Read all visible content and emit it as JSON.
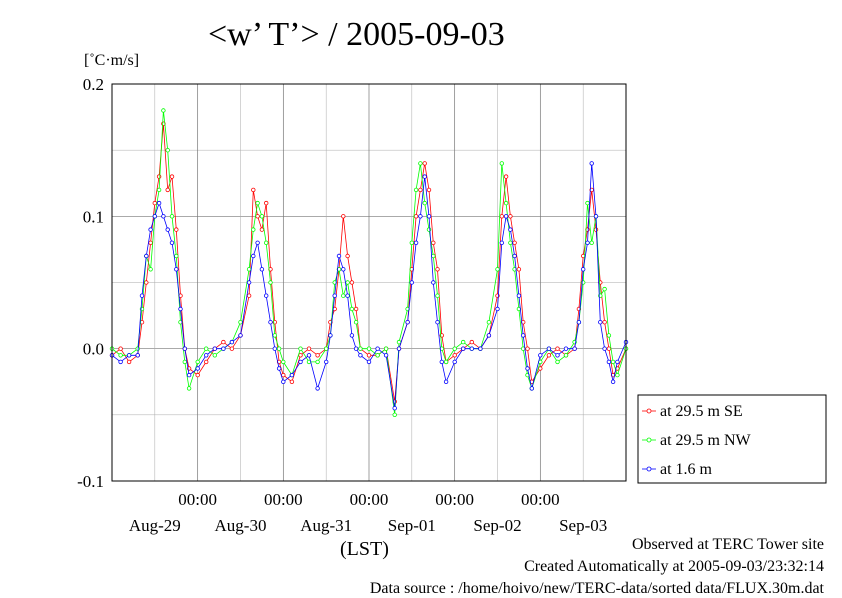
{
  "chart_data": {
    "type": "line",
    "title": "<w’ T’> / 2005-09-03",
    "ylabel": "[˚C·m/s]",
    "xlabel": "(LST)",
    "ylim": [
      -0.1,
      0.2
    ],
    "yticks": [
      "-0.1",
      "0.0",
      "0.1",
      "0.2"
    ],
    "xlim": [
      0,
      6
    ],
    "time_ticks": [
      "00:00",
      "00:00",
      "00:00",
      "00:00",
      "00:00"
    ],
    "date_labels": [
      "Aug-29",
      "Aug-30",
      "Aug-31",
      "Sep-01",
      "Sep-02",
      "Sep-03"
    ],
    "grid": true,
    "legend_position": "right",
    "series": [
      {
        "name": "at 29.5 m SE",
        "color": "#ff0000",
        "points": [
          [
            0.0,
            -0.005
          ],
          [
            0.1,
            0.0
          ],
          [
            0.2,
            -0.01
          ],
          [
            0.3,
            -0.005
          ],
          [
            0.35,
            0.02
          ],
          [
            0.4,
            0.05
          ],
          [
            0.45,
            0.08
          ],
          [
            0.5,
            0.11
          ],
          [
            0.55,
            0.13
          ],
          [
            0.6,
            0.17
          ],
          [
            0.65,
            0.12
          ],
          [
            0.7,
            0.13
          ],
          [
            0.75,
            0.09
          ],
          [
            0.8,
            0.04
          ],
          [
            0.85,
            0.0
          ],
          [
            0.9,
            -0.015
          ],
          [
            1.0,
            -0.02
          ],
          [
            1.1,
            -0.01
          ],
          [
            1.2,
            0.0
          ],
          [
            1.3,
            0.005
          ],
          [
            1.4,
            0.0
          ],
          [
            1.5,
            0.01
          ],
          [
            1.6,
            0.04
          ],
          [
            1.65,
            0.12
          ],
          [
            1.7,
            0.1
          ],
          [
            1.75,
            0.09
          ],
          [
            1.8,
            0.11
          ],
          [
            1.85,
            0.06
          ],
          [
            1.9,
            0.02
          ],
          [
            1.95,
            -0.01
          ],
          [
            2.0,
            -0.02
          ],
          [
            2.1,
            -0.025
          ],
          [
            2.2,
            -0.005
          ],
          [
            2.3,
            0.0
          ],
          [
            2.4,
            -0.005
          ],
          [
            2.5,
            0.0
          ],
          [
            2.55,
            0.02
          ],
          [
            2.6,
            0.03
          ],
          [
            2.65,
            0.06
          ],
          [
            2.7,
            0.1
          ],
          [
            2.75,
            0.07
          ],
          [
            2.8,
            0.05
          ],
          [
            2.85,
            0.03
          ],
          [
            2.9,
            0.0
          ],
          [
            3.0,
            -0.005
          ],
          [
            3.1,
            -0.005
          ],
          [
            3.2,
            0.0
          ],
          [
            3.3,
            -0.04
          ],
          [
            3.35,
            0.0
          ],
          [
            3.45,
            0.02
          ],
          [
            3.5,
            0.06
          ],
          [
            3.55,
            0.1
          ],
          [
            3.6,
            0.12
          ],
          [
            3.65,
            0.14
          ],
          [
            3.7,
            0.12
          ],
          [
            3.75,
            0.08
          ],
          [
            3.8,
            0.06
          ],
          [
            3.85,
            0.01
          ],
          [
            3.9,
            -0.01
          ],
          [
            4.0,
            -0.005
          ],
          [
            4.1,
            0.0
          ],
          [
            4.2,
            0.005
          ],
          [
            4.3,
            0.0
          ],
          [
            4.4,
            0.01
          ],
          [
            4.5,
            0.04
          ],
          [
            4.55,
            0.1
          ],
          [
            4.6,
            0.13
          ],
          [
            4.65,
            0.1
          ],
          [
            4.7,
            0.08
          ],
          [
            4.75,
            0.06
          ],
          [
            4.8,
            0.02
          ],
          [
            4.85,
            0.0
          ],
          [
            4.9,
            -0.025
          ],
          [
            5.0,
            -0.015
          ],
          [
            5.1,
            -0.005
          ],
          [
            5.2,
            0.0
          ],
          [
            5.3,
            -0.005
          ],
          [
            5.4,
            0.0
          ],
          [
            5.45,
            0.03
          ],
          [
            5.5,
            0.07
          ],
          [
            5.55,
            0.09
          ],
          [
            5.6,
            0.12
          ],
          [
            5.65,
            0.09
          ],
          [
            5.7,
            0.05
          ],
          [
            5.75,
            0.02
          ],
          [
            5.8,
            0.0
          ],
          [
            5.85,
            -0.02
          ],
          [
            5.9,
            -0.015
          ],
          [
            6.0,
            0.0
          ]
        ]
      },
      {
        "name": "at 29.5 m NW",
        "color": "#00ff00",
        "points": [
          [
            0.0,
            0.0
          ],
          [
            0.1,
            -0.005
          ],
          [
            0.2,
            -0.005
          ],
          [
            0.3,
            0.0
          ],
          [
            0.35,
            0.03
          ],
          [
            0.4,
            0.07
          ],
          [
            0.45,
            0.06
          ],
          [
            0.5,
            0.1
          ],
          [
            0.55,
            0.12
          ],
          [
            0.6,
            0.18
          ],
          [
            0.65,
            0.15
          ],
          [
            0.7,
            0.1
          ],
          [
            0.75,
            0.07
          ],
          [
            0.8,
            0.02
          ],
          [
            0.85,
            -0.01
          ],
          [
            0.9,
            -0.03
          ],
          [
            1.0,
            -0.01
          ],
          [
            1.1,
            0.0
          ],
          [
            1.2,
            -0.005
          ],
          [
            1.3,
            0.0
          ],
          [
            1.4,
            0.005
          ],
          [
            1.5,
            0.02
          ],
          [
            1.6,
            0.06
          ],
          [
            1.65,
            0.09
          ],
          [
            1.7,
            0.11
          ],
          [
            1.75,
            0.1
          ],
          [
            1.8,
            0.08
          ],
          [
            1.85,
            0.05
          ],
          [
            1.9,
            0.01
          ],
          [
            1.95,
            0.0
          ],
          [
            2.0,
            -0.01
          ],
          [
            2.1,
            -0.02
          ],
          [
            2.2,
            0.0
          ],
          [
            2.3,
            -0.01
          ],
          [
            2.4,
            -0.01
          ],
          [
            2.5,
            0.0
          ],
          [
            2.55,
            0.01
          ],
          [
            2.6,
            0.05
          ],
          [
            2.65,
            0.06
          ],
          [
            2.7,
            0.04
          ],
          [
            2.75,
            0.05
          ],
          [
            2.8,
            0.03
          ],
          [
            2.85,
            0.02
          ],
          [
            2.9,
            0.0
          ],
          [
            3.0,
            0.0
          ],
          [
            3.1,
            -0.005
          ],
          [
            3.2,
            0.0
          ],
          [
            3.3,
            -0.05
          ],
          [
            3.35,
            0.005
          ],
          [
            3.45,
            0.03
          ],
          [
            3.5,
            0.08
          ],
          [
            3.55,
            0.12
          ],
          [
            3.6,
            0.14
          ],
          [
            3.65,
            0.11
          ],
          [
            3.7,
            0.09
          ],
          [
            3.75,
            0.07
          ],
          [
            3.8,
            0.04
          ],
          [
            3.85,
            0.0
          ],
          [
            3.9,
            -0.01
          ],
          [
            4.0,
            0.0
          ],
          [
            4.1,
            0.005
          ],
          [
            4.2,
            0.0
          ],
          [
            4.3,
            0.0
          ],
          [
            4.4,
            0.02
          ],
          [
            4.5,
            0.06
          ],
          [
            4.55,
            0.14
          ],
          [
            4.6,
            0.11
          ],
          [
            4.65,
            0.08
          ],
          [
            4.7,
            0.06
          ],
          [
            4.75,
            0.03
          ],
          [
            4.8,
            0.0
          ],
          [
            4.85,
            -0.02
          ],
          [
            4.9,
            -0.03
          ],
          [
            5.0,
            -0.01
          ],
          [
            5.1,
            0.0
          ],
          [
            5.2,
            -0.01
          ],
          [
            5.3,
            -0.005
          ],
          [
            5.4,
            0.005
          ],
          [
            5.45,
            0.02
          ],
          [
            5.5,
            0.05
          ],
          [
            5.55,
            0.11
          ],
          [
            5.6,
            0.08
          ],
          [
            5.65,
            0.1
          ],
          [
            5.7,
            0.04
          ],
          [
            5.75,
            0.045
          ],
          [
            5.8,
            0.01
          ],
          [
            5.85,
            -0.01
          ],
          [
            5.9,
            -0.02
          ],
          [
            6.0,
            0.0
          ]
        ]
      },
      {
        "name": "at 1.6 m",
        "color": "#0000ff",
        "points": [
          [
            0.0,
            -0.005
          ],
          [
            0.1,
            -0.01
          ],
          [
            0.2,
            -0.005
          ],
          [
            0.3,
            -0.005
          ],
          [
            0.35,
            0.04
          ],
          [
            0.4,
            0.07
          ],
          [
            0.45,
            0.09
          ],
          [
            0.5,
            0.1
          ],
          [
            0.55,
            0.11
          ],
          [
            0.6,
            0.1
          ],
          [
            0.65,
            0.09
          ],
          [
            0.7,
            0.08
          ],
          [
            0.75,
            0.06
          ],
          [
            0.8,
            0.03
          ],
          [
            0.85,
            0.0
          ],
          [
            0.9,
            -0.02
          ],
          [
            1.0,
            -0.015
          ],
          [
            1.1,
            -0.005
          ],
          [
            1.2,
            0.0
          ],
          [
            1.3,
            0.0
          ],
          [
            1.4,
            0.005
          ],
          [
            1.5,
            0.01
          ],
          [
            1.6,
            0.05
          ],
          [
            1.65,
            0.07
          ],
          [
            1.7,
            0.08
          ],
          [
            1.75,
            0.06
          ],
          [
            1.8,
            0.04
          ],
          [
            1.85,
            0.02
          ],
          [
            1.9,
            0.0
          ],
          [
            1.95,
            -0.015
          ],
          [
            2.0,
            -0.025
          ],
          [
            2.1,
            -0.02
          ],
          [
            2.2,
            -0.01
          ],
          [
            2.3,
            -0.005
          ],
          [
            2.4,
            -0.03
          ],
          [
            2.5,
            -0.01
          ],
          [
            2.55,
            0.01
          ],
          [
            2.6,
            0.04
          ],
          [
            2.65,
            0.07
          ],
          [
            2.7,
            0.06
          ],
          [
            2.75,
            0.04
          ],
          [
            2.8,
            0.01
          ],
          [
            2.85,
            0.0
          ],
          [
            2.9,
            -0.005
          ],
          [
            3.0,
            -0.01
          ],
          [
            3.1,
            0.0
          ],
          [
            3.2,
            -0.005
          ],
          [
            3.3,
            -0.045
          ],
          [
            3.35,
            0.0
          ],
          [
            3.45,
            0.02
          ],
          [
            3.5,
            0.05
          ],
          [
            3.55,
            0.08
          ],
          [
            3.6,
            0.1
          ],
          [
            3.65,
            0.13
          ],
          [
            3.7,
            0.1
          ],
          [
            3.75,
            0.05
          ],
          [
            3.8,
            0.02
          ],
          [
            3.85,
            -0.01
          ],
          [
            3.9,
            -0.025
          ],
          [
            4.0,
            -0.01
          ],
          [
            4.1,
            0.0
          ],
          [
            4.2,
            0.0
          ],
          [
            4.3,
            0.0
          ],
          [
            4.4,
            0.01
          ],
          [
            4.5,
            0.03
          ],
          [
            4.55,
            0.08
          ],
          [
            4.6,
            0.1
          ],
          [
            4.65,
            0.09
          ],
          [
            4.7,
            0.07
          ],
          [
            4.75,
            0.04
          ],
          [
            4.8,
            0.01
          ],
          [
            4.85,
            -0.015
          ],
          [
            4.9,
            -0.03
          ],
          [
            5.0,
            -0.005
          ],
          [
            5.1,
            0.0
          ],
          [
            5.2,
            -0.005
          ],
          [
            5.3,
            0.0
          ],
          [
            5.4,
            0.0
          ],
          [
            5.45,
            0.02
          ],
          [
            5.5,
            0.06
          ],
          [
            5.55,
            0.08
          ],
          [
            5.6,
            0.14
          ],
          [
            5.65,
            0.1
          ],
          [
            5.7,
            0.02
          ],
          [
            5.75,
            0.0
          ],
          [
            5.8,
            -0.01
          ],
          [
            5.85,
            -0.025
          ],
          [
            5.9,
            -0.01
          ],
          [
            6.0,
            0.005
          ]
        ]
      }
    ]
  },
  "footer": {
    "site": "Observed at TERC Tower site",
    "created": "Created Automatically at 2005-09-03/23:32:14",
    "source": "Data source : /home/hoivo/new/TERC-data/sorted  data/FLUX.30m.dat"
  }
}
